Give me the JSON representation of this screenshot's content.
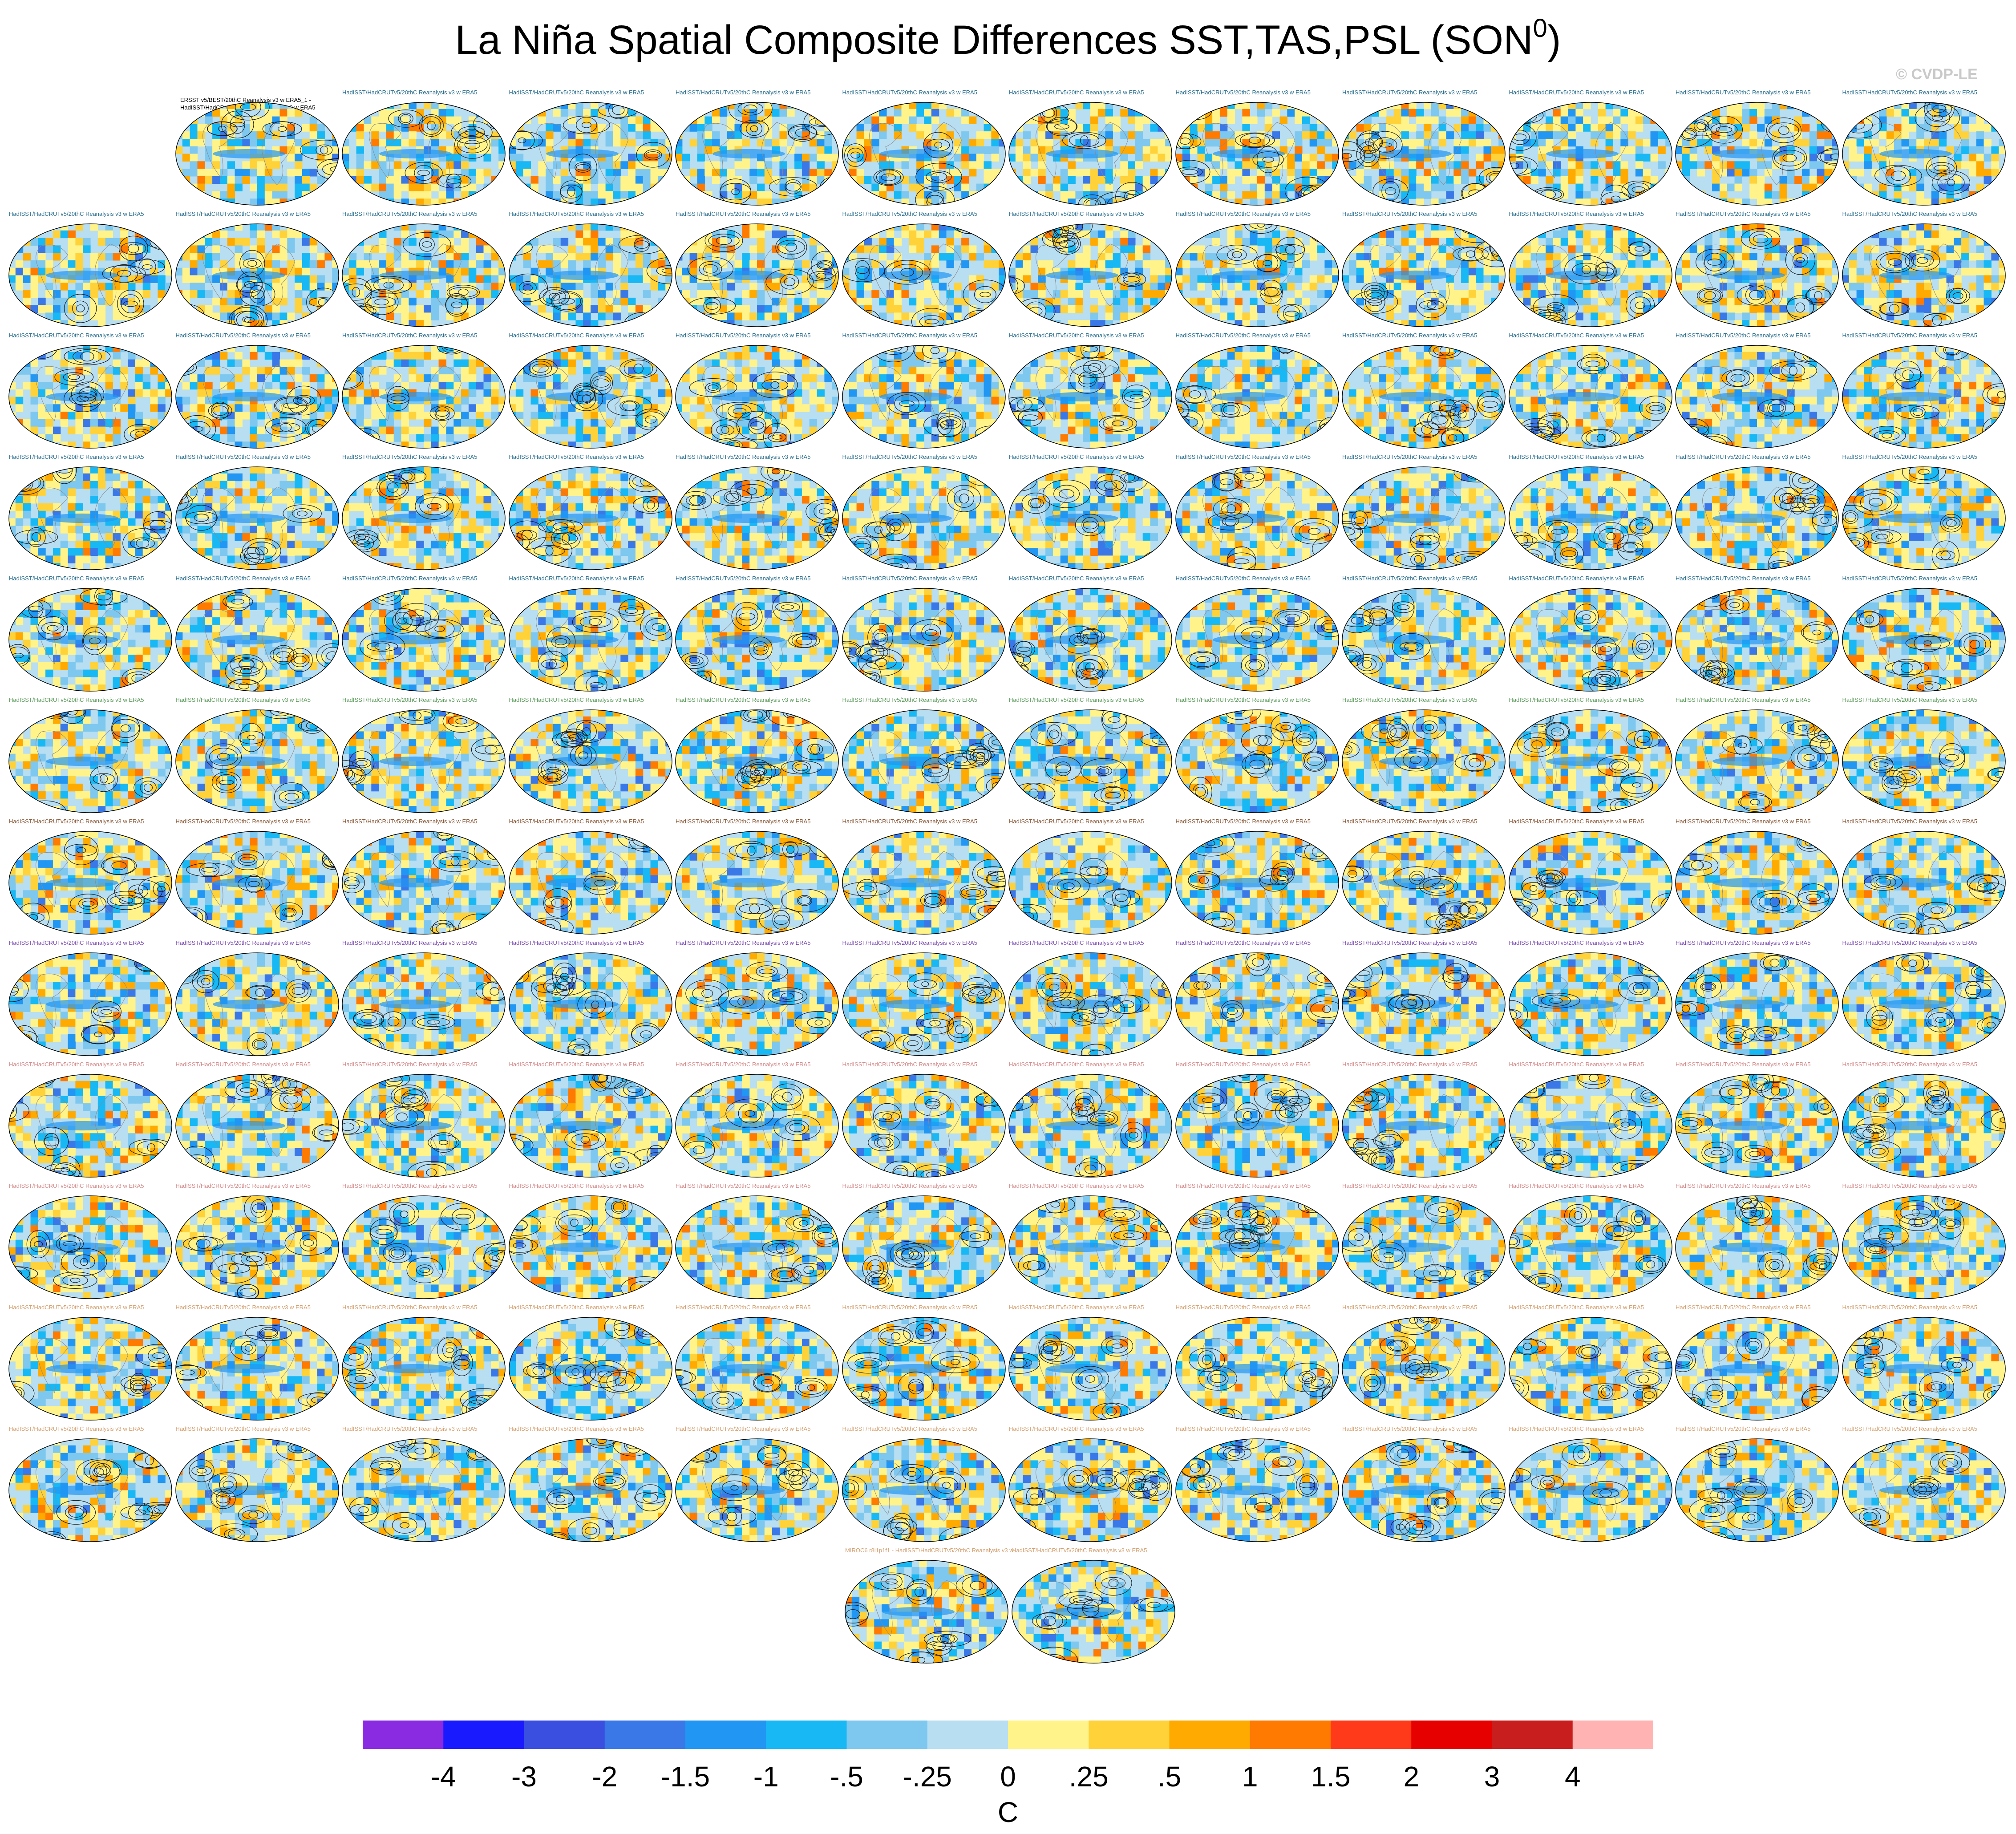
{
  "title": "La Niña Spatial Composite Differences SST,TAS,PSL (SON",
  "title_superscript": "0",
  "title_close": ")",
  "watermark": "© CVDP-LE",
  "obs_label_line1": "ERSST v5/BEST/20thC Reanalysis v3 w ERA5_1 -",
  "obs_label_line2": "HadISST/HadCRUTv5/20thC Reanalysis v3 w ERA5",
  "panel_label_template": "HadISST/HadCRUTv5/20thC Reanalysis v3 w ERA5",
  "extra_row_labels": [
    "MIROC6 r8i1p1f1 - HadISST/HadCRUTv5/20thC Reanalysis v3 w ERA5",
    "HadISST/HadCRUTv5/20thC Reanalysis v3 w ERA5"
  ],
  "grid": {
    "rows": 13,
    "columns": 12,
    "first_row_panels": 11,
    "last_row_panels": 2
  },
  "label_colors": [
    "#2a6f8f",
    "#2a6f8f",
    "#2a6f8f",
    "#2a6f8f",
    "#2a6f8f",
    "#5a9a5a",
    "#8a5a3a",
    "#7a4ab0",
    "#d48a8a",
    "#d48a8a",
    "#d4a070",
    "#d4a070",
    "#d4a070"
  ],
  "chart_data": {
    "type": "heatmap",
    "description_fields": "global maps of composite differences with PSL contours",
    "colorbar": {
      "units": "C",
      "tick_labels": [
        "-4",
        "-3",
        "-2",
        "-1.5",
        "-1",
        "-.5",
        "-.25",
        "0",
        ".25",
        ".5",
        "1",
        "1.5",
        "2",
        "3",
        "4"
      ],
      "colors": [
        "#8a2be2",
        "#1a1aff",
        "#3a4fe0",
        "#3a78e8",
        "#2196f3",
        "#18b8f5",
        "#7ec8f0",
        "#b8def2",
        "#fff38a",
        "#ffd23a",
        "#ffaa00",
        "#ff7a00",
        "#ff3a1a",
        "#e60000",
        "#c81e1e",
        "#ffb3b3"
      ]
    }
  }
}
